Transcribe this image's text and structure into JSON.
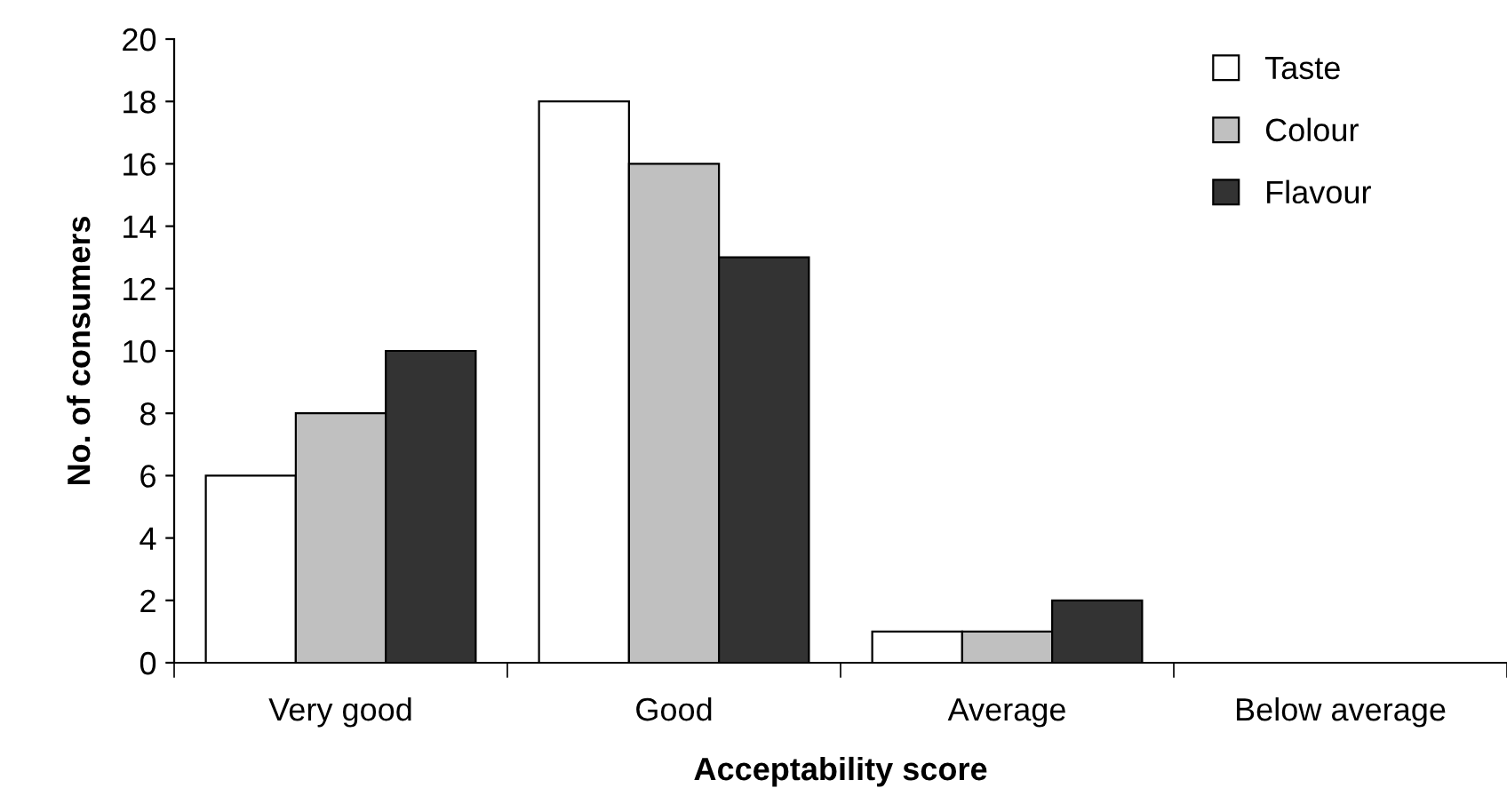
{
  "chart_data": {
    "type": "bar",
    "xlabel": "Acceptability score",
    "ylabel": "No. of consumers",
    "categories": [
      "Very good",
      "Good",
      "Average",
      "Below average"
    ],
    "series": [
      {
        "name": "Taste",
        "color": "#ffffff",
        "values": [
          6,
          18,
          1,
          0
        ]
      },
      {
        "name": "Colour",
        "color": "#c0c0c0",
        "values": [
          8,
          16,
          1,
          0
        ]
      },
      {
        "name": "Flavour",
        "color": "#333333",
        "values": [
          10,
          13,
          2,
          0
        ]
      }
    ],
    "ylim": [
      0,
      20
    ],
    "yticks": [
      0,
      2,
      4,
      6,
      8,
      10,
      12,
      14,
      16,
      18,
      20
    ],
    "grid": false,
    "legend": "top right"
  }
}
